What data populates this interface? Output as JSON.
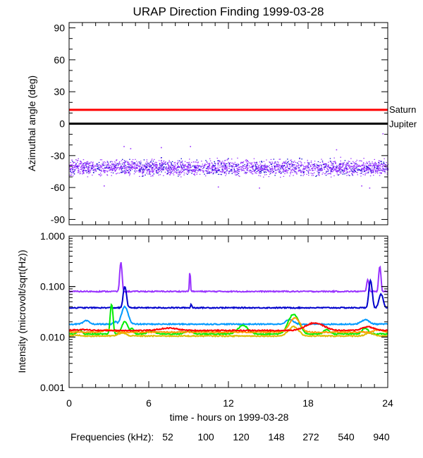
{
  "chart_data": [
    {
      "type": "scatter",
      "title": "URAP Direction Finding  1999-03-28",
      "ylabel": "Azimuthal angle (deg)",
      "xlim": [
        0,
        24
      ],
      "ylim": [
        -95,
        95
      ],
      "yticks": [
        90,
        60,
        30,
        0,
        -30,
        -60,
        -90
      ],
      "ytick_labels": [
        "90",
        "60",
        "30",
        "0",
        "-30",
        "-60",
        "-90"
      ],
      "reference_lines": [
        {
          "name": "Saturn",
          "value": 13,
          "color": "#ff0000"
        },
        {
          "name": "Jupiter",
          "value": 0,
          "color": "#000000"
        }
      ],
      "scatter_band": {
        "center": -41,
        "spread": 8,
        "range": [
          -55,
          -30
        ],
        "colors": [
          "#9933ff",
          "#0000cc"
        ]
      },
      "outliers": [
        {
          "x": 4.1,
          "y": -21
        },
        {
          "x": 4.6,
          "y": -23
        },
        {
          "x": 6.9,
          "y": -22
        },
        {
          "x": 9.1,
          "y": -21
        },
        {
          "x": 11.2,
          "y": -59
        },
        {
          "x": 14.3,
          "y": -60
        },
        {
          "x": 20.1,
          "y": -24
        },
        {
          "x": 22.0,
          "y": -58
        },
        {
          "x": 23.6,
          "y": -9
        },
        {
          "x": 22.6,
          "y": -60
        },
        {
          "x": 2.6,
          "y": -58
        }
      ]
    },
    {
      "type": "line",
      "ylabel": "Intensity (microvolt/sqrt(Hz))",
      "xlabel": "time - hours on 1999-03-28",
      "xlim": [
        0,
        24
      ],
      "xticks": [
        0,
        6,
        12,
        18,
        24
      ],
      "xtick_labels": [
        "0",
        "6",
        "12",
        "18",
        "24"
      ],
      "yscale": "log",
      "ylim": [
        0.001,
        1.0
      ],
      "yticks": [
        1.0,
        0.1,
        0.01,
        0.001
      ],
      "ytick_labels": [
        "1.000",
        "0.100",
        "0.010",
        "0.001"
      ],
      "series": [
        {
          "name": "940",
          "color": "#9933ff",
          "base": 0.08,
          "peaks": [
            {
              "t": 3.9,
              "v": 0.3,
              "w": 0.1
            },
            {
              "t": 9.1,
              "v": 0.2,
              "w": 0.05
            },
            {
              "t": 22.5,
              "v": 0.14,
              "w": 0.1
            },
            {
              "t": 23.4,
              "v": 0.25,
              "w": 0.1
            }
          ]
        },
        {
          "name": "540",
          "color": "#0000cc",
          "base": 0.038,
          "peaks": [
            {
              "t": 4.2,
              "v": 0.1,
              "w": 0.15
            },
            {
              "t": 9.2,
              "v": 0.045,
              "w": 0.06
            },
            {
              "t": 22.7,
              "v": 0.13,
              "w": 0.15
            },
            {
              "t": 23.5,
              "v": 0.07,
              "w": 0.2
            }
          ]
        },
        {
          "name": "272",
          "color": "#0099ff",
          "base": 0.018,
          "peaks": [
            {
              "t": 1.3,
              "v": 0.021,
              "w": 0.3
            },
            {
              "t": 3.5,
              "v": 0.02,
              "w": 0.2
            },
            {
              "t": 4.2,
              "v": 0.04,
              "w": 0.3
            },
            {
              "t": 16.6,
              "v": 0.022,
              "w": 0.4
            },
            {
              "t": 22.3,
              "v": 0.022,
              "w": 0.4
            }
          ]
        },
        {
          "name": "148",
          "color": "#00ee00",
          "base": 0.0115,
          "peaks": [
            {
              "t": 0.8,
              "v": 0.014,
              "w": 0.2
            },
            {
              "t": 3.2,
              "v": 0.045,
              "w": 0.12
            },
            {
              "t": 4.2,
              "v": 0.02,
              "w": 0.3
            },
            {
              "t": 4.7,
              "v": 0.015,
              "w": 0.2
            },
            {
              "t": 6.2,
              "v": 0.013,
              "w": 0.4
            },
            {
              "t": 9.0,
              "v": 0.013,
              "w": 0.4
            },
            {
              "t": 13.1,
              "v": 0.017,
              "w": 0.5
            },
            {
              "t": 16.9,
              "v": 0.028,
              "w": 0.5
            },
            {
              "t": 19.4,
              "v": 0.014,
              "w": 0.3
            },
            {
              "t": 22.3,
              "v": 0.015,
              "w": 0.3
            }
          ]
        },
        {
          "name": "120",
          "color": "#ddbb00",
          "base": 0.0105,
          "peaks": [
            {
              "t": 0.5,
              "v": 0.011,
              "w": 0.3
            },
            {
              "t": 4.0,
              "v": 0.012,
              "w": 0.4
            },
            {
              "t": 16.9,
              "v": 0.016,
              "w": 0.5
            },
            {
              "t": 22.6,
              "v": 0.012,
              "w": 0.4
            }
          ]
        },
        {
          "name": "100",
          "color": "#ff9900",
          "base": 0.0125,
          "peaks": [
            {
              "t": 3.0,
              "v": 0.014,
              "w": 0.5
            },
            {
              "t": 17.0,
              "v": 0.024,
              "w": 0.5
            },
            {
              "t": 23.3,
              "v": 0.014,
              "w": 0.4
            }
          ]
        },
        {
          "name": "52",
          "color": "#ff0000",
          "base": 0.0135,
          "peaks": [
            {
              "t": 1.0,
              "v": 0.014,
              "w": 0.8
            },
            {
              "t": 7.5,
              "v": 0.015,
              "w": 0.9
            },
            {
              "t": 18.5,
              "v": 0.019,
              "w": 0.9
            },
            {
              "t": 22.5,
              "v": 0.016,
              "w": 0.6
            }
          ]
        }
      ]
    }
  ],
  "legend": {
    "label": "Frequencies (kHz):",
    "entries": [
      {
        "text": "52",
        "color": "#ff0000"
      },
      {
        "text": "100",
        "color": "#ff9900"
      },
      {
        "text": "120",
        "color": "#ddbb00"
      },
      {
        "text": "148",
        "color": "#00ee00"
      },
      {
        "text": "272",
        "color": "#0099ff"
      },
      {
        "text": "540",
        "color": "#0000cc"
      },
      {
        "text": "940",
        "color": "#9933ff"
      }
    ]
  }
}
